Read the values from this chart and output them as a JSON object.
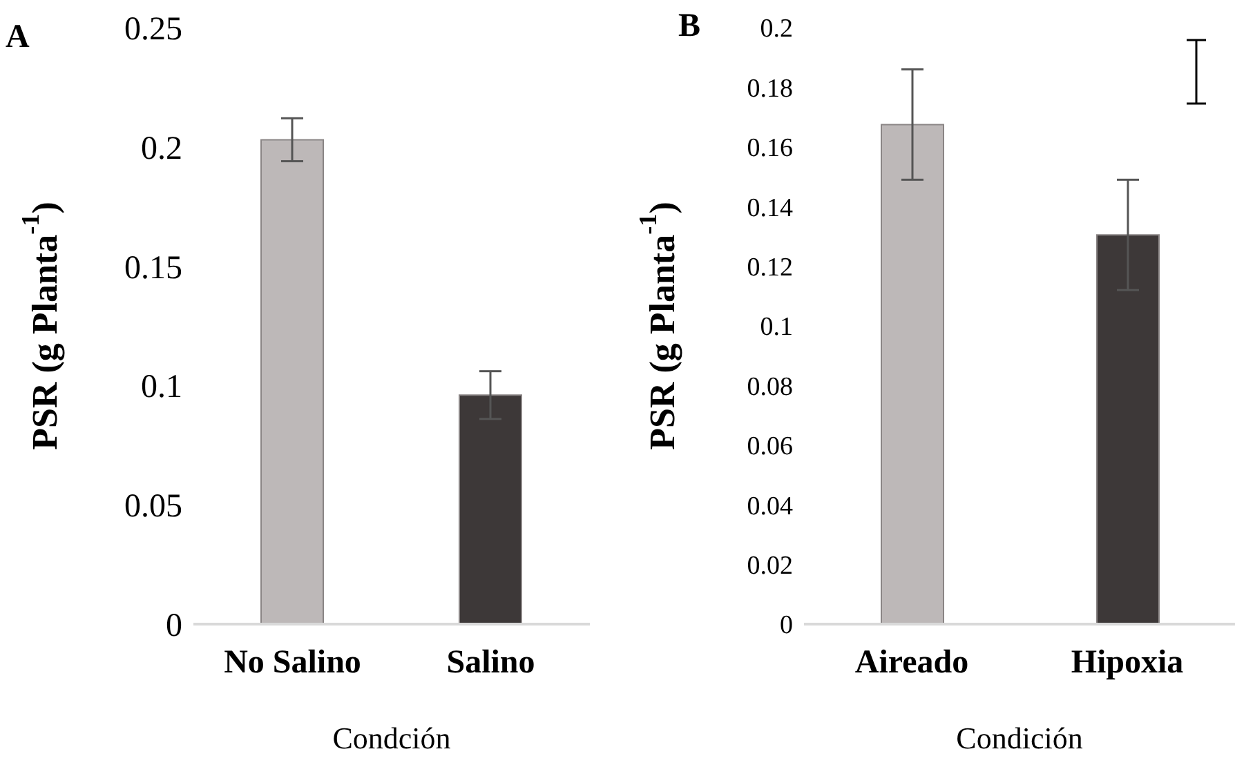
{
  "chart_data": [
    {
      "type": "bar",
      "title": "A",
      "xlabel": "Condción",
      "ylabel": "PSR (g Planta$^{-1}$)",
      "categories": [
        "No Salino",
        "Salino"
      ],
      "values": [
        0.203,
        0.096
      ],
      "colors": [
        "#bdb8b8",
        "#3d3838"
      ],
      "errors": [
        0.009,
        0.01
      ],
      "ylim": [
        0,
        0.25
      ],
      "yticks": [
        0,
        0.05,
        0.1,
        0.15,
        0.2,
        0.25
      ]
    },
    {
      "type": "bar",
      "title": "B",
      "xlabel": "Condición",
      "ylabel": "PSR (g Planta$^{-1}$)",
      "categories": [
        "Aireado",
        "Hipoxia"
      ],
      "values": [
        0.1675,
        0.1305
      ],
      "colors": [
        "#bdb8b8",
        "#3d3838"
      ],
      "errors": [
        0.0185,
        0.0185
      ],
      "ylim": [
        0,
        0.2
      ],
      "yticks": [
        0,
        0.02,
        0.04,
        0.06,
        0.08,
        0.1,
        0.12,
        0.14,
        0.16,
        0.18,
        0.2
      ]
    }
  ]
}
